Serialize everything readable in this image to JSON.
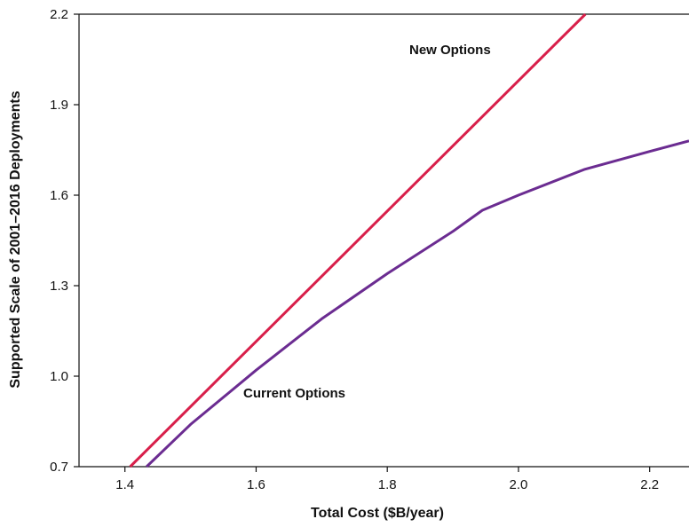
{
  "chart_data": {
    "type": "line",
    "title": "",
    "xlabel": "Total Cost ($B/year)",
    "ylabel": "Supported Scale of 2001–2016 Deployments",
    "xlim": [
      1.33,
      2.26
    ],
    "ylim": [
      0.7,
      2.2
    ],
    "x_ticks": [
      "1.4",
      "1.6",
      "1.8",
      "2.0",
      "2.2"
    ],
    "y_ticks": [
      "0.7",
      "1.0",
      "1.3",
      "1.6",
      "1.9",
      "2.2"
    ],
    "grid": false,
    "series": [
      {
        "name": "New Options",
        "color": "#d81f4a",
        "points": [
          [
            1.408,
            0.7
          ],
          [
            2.102,
            2.2
          ]
        ]
      },
      {
        "name": "Current Options",
        "color": "#6b2c91",
        "points": [
          [
            1.433,
            0.7
          ],
          [
            1.5,
            0.84
          ],
          [
            1.6,
            1.02
          ],
          [
            1.7,
            1.19
          ],
          [
            1.8,
            1.34
          ],
          [
            1.9,
            1.48
          ],
          [
            1.945,
            1.55
          ],
          [
            2.0,
            1.6
          ],
          [
            2.1,
            1.685
          ],
          [
            2.2,
            1.745
          ],
          [
            2.26,
            1.78
          ]
        ]
      }
    ]
  }
}
